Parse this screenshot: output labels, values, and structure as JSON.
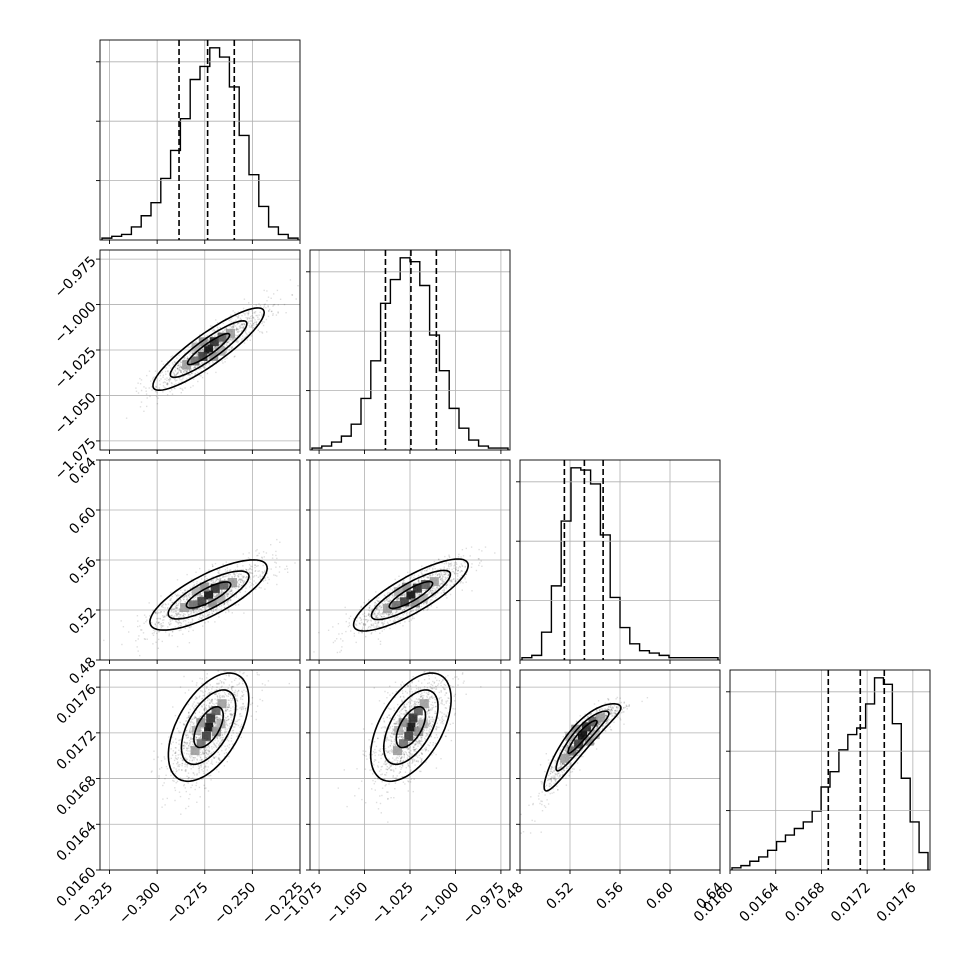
{
  "chart_data": {
    "type": "corner",
    "grid": true,
    "title": "",
    "params": [
      {
        "range": [
          -0.33,
          -0.225
        ],
        "ticks": [
          -0.325,
          -0.3,
          -0.275,
          -0.25,
          -0.225
        ],
        "tick_labels": [
          "−0.325",
          "−0.300",
          "−0.275",
          "−0.250",
          "−0.225"
        ],
        "quantiles": [
          -0.2885,
          -0.2735,
          -0.2595
        ],
        "hist": [
          1,
          2,
          3,
          7,
          13,
          20,
          33,
          48,
          65,
          86,
          93,
          103,
          98,
          82,
          56,
          35,
          18,
          7,
          3,
          1
        ]
      },
      {
        "range": [
          -1.08,
          -0.97
        ],
        "ticks": [
          -1.075,
          -1.05,
          -1.025,
          -1.0,
          -0.975
        ],
        "tick_labels": [
          "−1.075",
          "−1.050",
          "−1.025",
          "−1.000",
          "−0.975"
        ],
        "quantiles": [
          -1.0385,
          -1.0245,
          -1.0105
        ],
        "hist": [
          1,
          2,
          4,
          7,
          13,
          26,
          45,
          74,
          86,
          97,
          95,
          83,
          58,
          40,
          21,
          11,
          5,
          2,
          1,
          1
        ]
      },
      {
        "range": [
          0.48,
          0.64
        ],
        "ticks": [
          0.48,
          0.52,
          0.56,
          0.6,
          0.64
        ],
        "tick_labels": [
          "0.48",
          "0.52",
          "0.56",
          "0.60",
          "0.64"
        ],
        "quantiles": [
          0.5155,
          0.5315,
          0.5465
        ],
        "hist": [
          1,
          2,
          12,
          32,
          60,
          83,
          82,
          76,
          54,
          27,
          14,
          7,
          4,
          3,
          2,
          1,
          1,
          1,
          1,
          1
        ]
      },
      {
        "range": [
          0.016,
          0.01775
        ],
        "ticks": [
          0.016,
          0.0164,
          0.0168,
          0.0172,
          0.0176
        ],
        "tick_labels": [
          "0.0160",
          "0.0164",
          "0.0168",
          "0.0172",
          "0.0176"
        ],
        "quantiles": [
          0.01686,
          0.01714,
          0.01735
        ],
        "hist": [
          1,
          2,
          4,
          6,
          9,
          13,
          16,
          19,
          22,
          27,
          38,
          45,
          55,
          62,
          65,
          76,
          88,
          85,
          67,
          42,
          22,
          8
        ]
      }
    ],
    "pairs": [
      {
        "row": 1,
        "col": 0,
        "center": [
          -0.273,
          -1.0245
        ]
      },
      {
        "row": 2,
        "col": 0,
        "center": [
          -0.273,
          0.532
        ]
      },
      {
        "row": 2,
        "col": 1,
        "center": [
          -1.0245,
          0.532
        ]
      },
      {
        "row": 3,
        "col": 0,
        "center": [
          -0.273,
          0.01725
        ]
      },
      {
        "row": 3,
        "col": 1,
        "center": [
          -1.0245,
          0.01725
        ]
      },
      {
        "row": 3,
        "col": 2,
        "center": [
          0.53,
          0.01718
        ]
      }
    ]
  }
}
